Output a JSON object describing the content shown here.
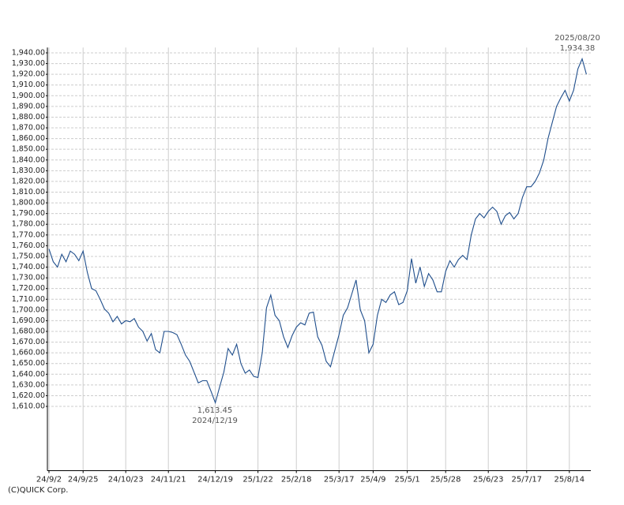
{
  "chart_data": {
    "type": "line",
    "categories": [
      "24/9/2",
      null,
      null,
      null,
      null,
      null,
      null,
      null,
      "24/9/25",
      null,
      null,
      null,
      null,
      null,
      null,
      null,
      null,
      null,
      "24/10/23",
      null,
      null,
      null,
      null,
      null,
      null,
      null,
      null,
      null,
      "24/11/21",
      null,
      null,
      null,
      null,
      null,
      null,
      null,
      null,
      null,
      null,
      "24/12/19",
      null,
      null,
      null,
      null,
      null,
      null,
      null,
      null,
      null,
      "25/1/22",
      null,
      null,
      null,
      null,
      null,
      null,
      null,
      null,
      "25/2/18",
      null,
      null,
      null,
      null,
      null,
      null,
      null,
      null,
      null,
      "25/3/17",
      null,
      null,
      null,
      null,
      null,
      null,
      null,
      "25/4/9",
      null,
      null,
      null,
      null,
      null,
      null,
      null,
      "25/5/1",
      null,
      null,
      null,
      null,
      null,
      null,
      null,
      null,
      "25/5/28",
      null,
      null,
      null,
      null,
      null,
      null,
      null,
      null,
      null,
      "25/6/23",
      null,
      null,
      null,
      null,
      null,
      null,
      null,
      null,
      "25/7/17",
      null,
      null,
      null,
      null,
      null,
      null,
      null,
      null,
      null,
      "25/8/14",
      null,
      null,
      null,
      null
    ],
    "series": [
      {
        "color": "#1f4e8c",
        "values": [
          1757,
          1745,
          1740,
          1752,
          1745,
          1755,
          1752,
          1746,
          1755,
          1735,
          1720,
          1718,
          1710,
          1701,
          1697,
          1689,
          1694,
          1687,
          1690,
          1689,
          1692,
          1684,
          1680,
          1671,
          1678,
          1663,
          1660,
          1680,
          1680,
          1679,
          1677,
          1668,
          1658,
          1652,
          1642,
          1632,
          1634,
          1634,
          1624,
          1613.45,
          1628,
          1642,
          1664,
          1658,
          1668,
          1650,
          1641,
          1644,
          1638,
          1637,
          1660,
          1702,
          1714,
          1695,
          1690,
          1675,
          1665,
          1676,
          1684,
          1688,
          1686,
          1697,
          1698,
          1675,
          1667,
          1652,
          1647,
          1662,
          1677,
          1695,
          1702,
          1715,
          1728,
          1700,
          1690,
          1660,
          1668,
          1695,
          1710,
          1707,
          1714,
          1717,
          1705,
          1707,
          1718,
          1748,
          1725,
          1740,
          1722,
          1734,
          1728,
          1717,
          1717,
          1736,
          1746,
          1740,
          1747,
          1751,
          1747,
          1770,
          1785,
          1790,
          1786,
          1792,
          1796,
          1792,
          1780,
          1788,
          1791,
          1785,
          1790,
          1805,
          1815,
          1815,
          1820,
          1828,
          1840,
          1860,
          1875,
          1890,
          1898,
          1905,
          1895,
          1905,
          1925,
          1934.38,
          1920
        ]
      }
    ],
    "ylim": [
      1550,
      1945
    ],
    "yticks": [
      {
        "value": 1610,
        "label": "1,610.00"
      },
      {
        "value": 1620,
        "label": "1,620.00"
      },
      {
        "value": 1630,
        "label": "1,630.00"
      },
      {
        "value": 1640,
        "label": "1,640.00"
      },
      {
        "value": 1650,
        "label": "1,650.00"
      },
      {
        "value": 1660,
        "label": "1,660.00"
      },
      {
        "value": 1670,
        "label": "1,670.00"
      },
      {
        "value": 1680,
        "label": "1,680.00"
      },
      {
        "value": 1690,
        "label": "1,690.00"
      },
      {
        "value": 1700,
        "label": "1,700.00"
      },
      {
        "value": 1710,
        "label": "1,710.00"
      },
      {
        "value": 1720,
        "label": "1,720.00"
      },
      {
        "value": 1730,
        "label": "1,730.00"
      },
      {
        "value": 1740,
        "label": "1,740.00"
      },
      {
        "value": 1750,
        "label": "1,750.00"
      },
      {
        "value": 1760,
        "label": "1,760.00"
      },
      {
        "value": 1770,
        "label": "1,770.00"
      },
      {
        "value": 1780,
        "label": "1,780.00"
      },
      {
        "value": 1790,
        "label": "1,790.00"
      },
      {
        "value": 1800,
        "label": "1,800.00"
      },
      {
        "value": 1810,
        "label": "1,810.00"
      },
      {
        "value": 1820,
        "label": "1,820.00"
      },
      {
        "value": 1830,
        "label": "1,830.00"
      },
      {
        "value": 1840,
        "label": "1,840.00"
      },
      {
        "value": 1850,
        "label": "1,850.00"
      },
      {
        "value": 1860,
        "label": "1,860.00"
      },
      {
        "value": 1870,
        "label": "1,870.00"
      },
      {
        "value": 1880,
        "label": "1,880.00"
      },
      {
        "value": 1890,
        "label": "1,890.00"
      },
      {
        "value": 1900,
        "label": "1,900.00"
      },
      {
        "value": 1910,
        "label": "1,910.00"
      },
      {
        "value": 1920,
        "label": "1,920.00"
      },
      {
        "value": 1930,
        "label": "1,930.00"
      },
      {
        "value": 1940,
        "label": "1,940.00"
      }
    ],
    "grid": true,
    "annotations": {
      "max_date": "2025/08/20",
      "max_value": "1,934.38",
      "min_value": "1,613.45",
      "min_date": "2024/12/19"
    },
    "credit": "(C)QUICK Corp."
  }
}
